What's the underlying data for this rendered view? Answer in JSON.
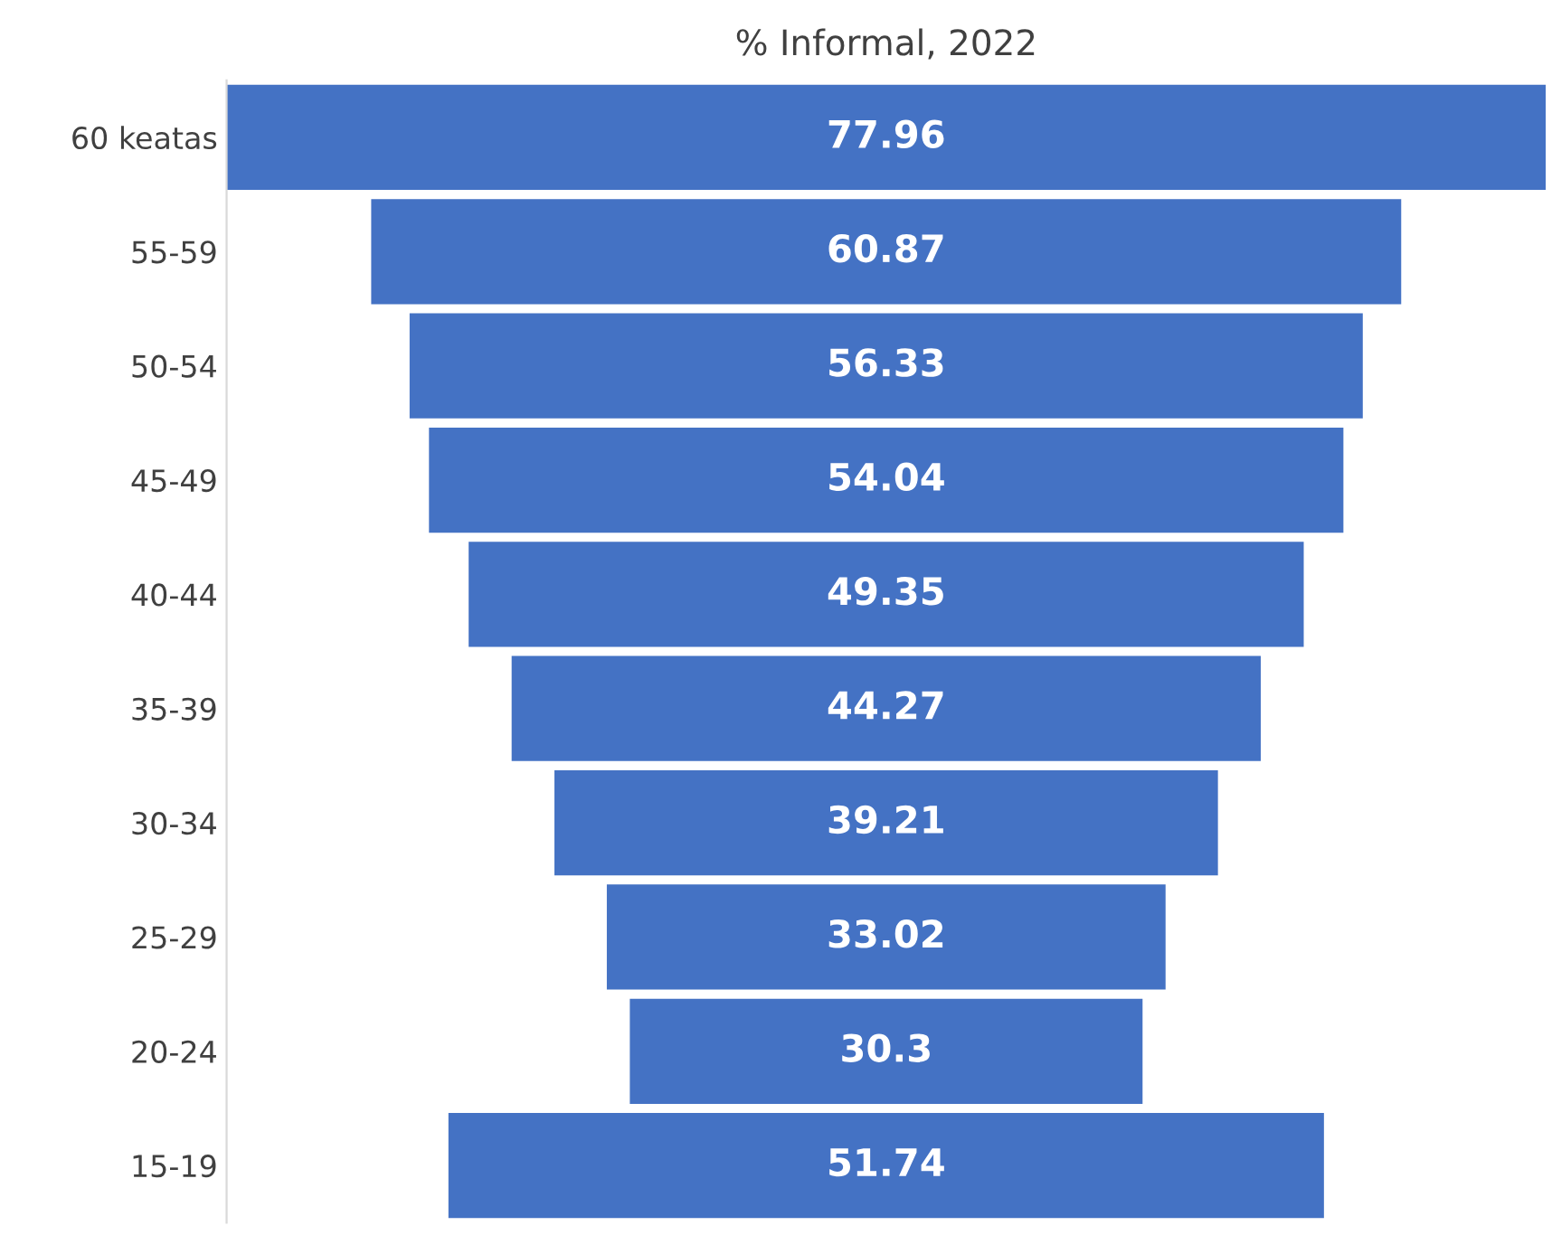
{
  "chart_data": {
    "type": "other",
    "title": "% Informal, 2022",
    "categories": [
      "60 keatas",
      "55-59",
      "50-54",
      "45-49",
      "40-44",
      "35-39",
      "30-34",
      "25-29",
      "20-24",
      "15-19"
    ],
    "values": [
      77.96,
      60.87,
      56.33,
      54.04,
      49.35,
      44.27,
      39.21,
      33.02,
      30.3,
      51.74
    ],
    "color": "#4472c4",
    "data_labels": true
  }
}
